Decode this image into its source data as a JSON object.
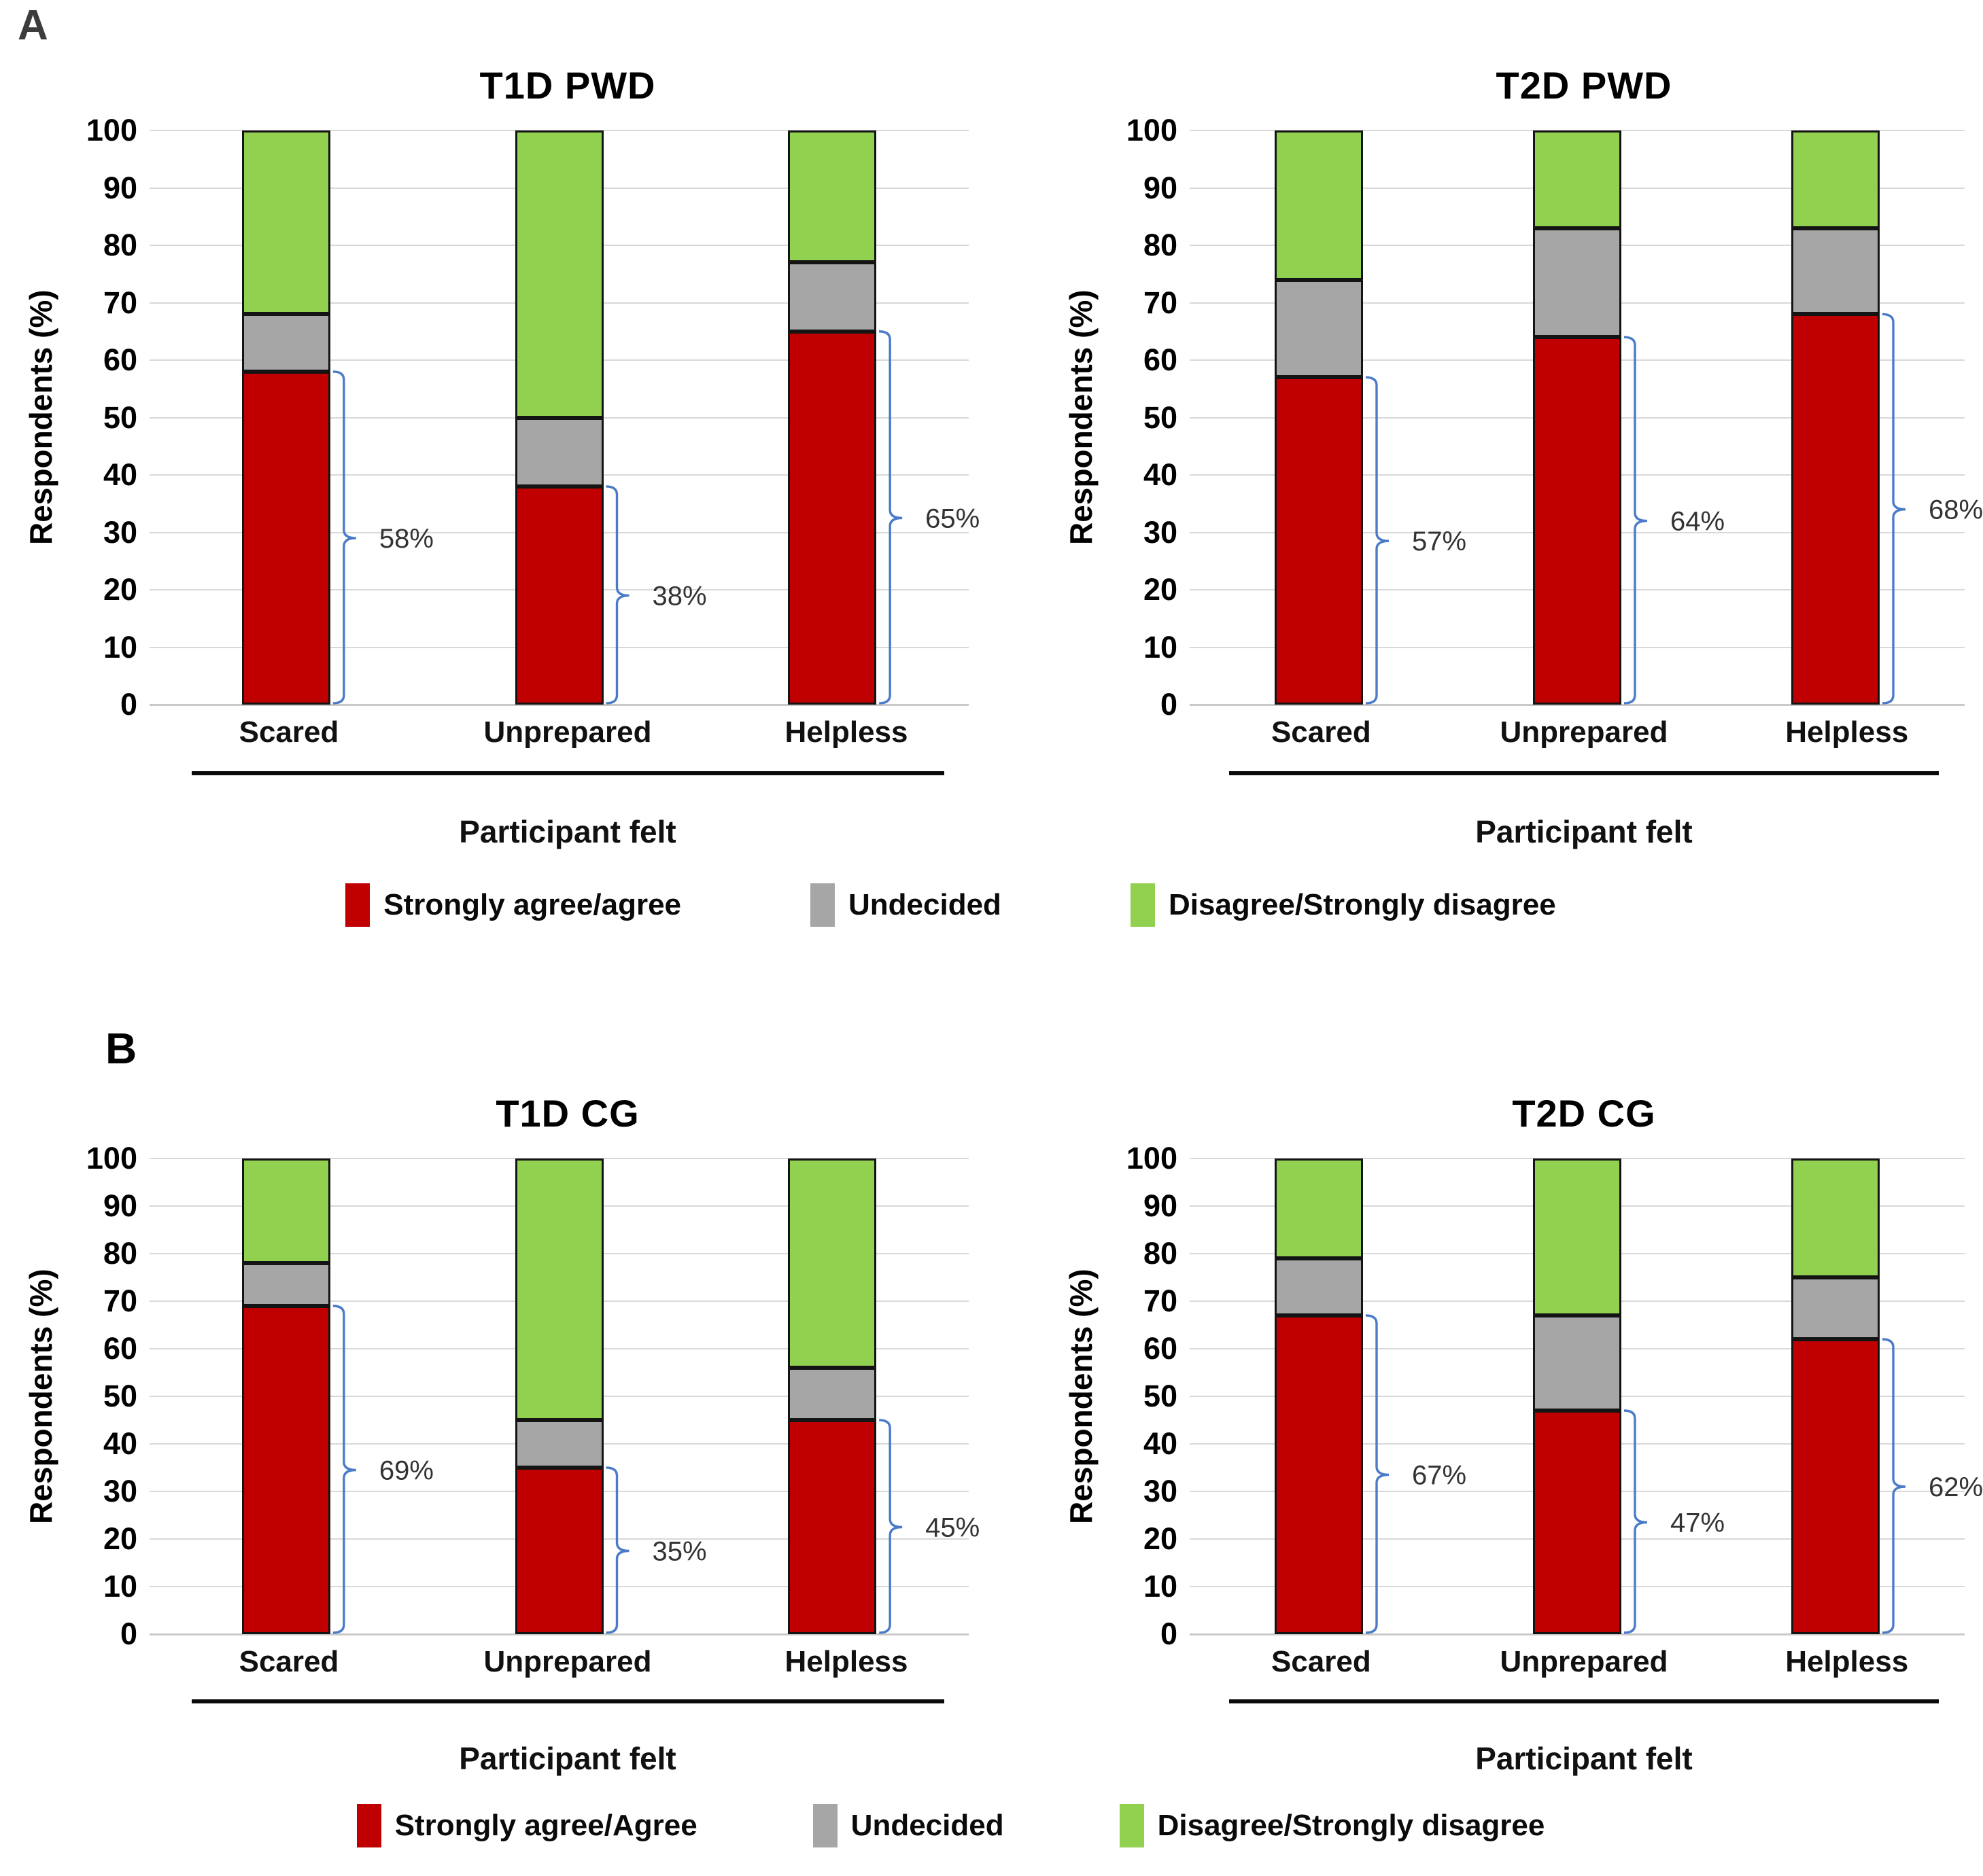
{
  "figure": {
    "panel_a_label": "A",
    "panel_b_label": "B"
  },
  "colors": {
    "agree": "#C00000",
    "undecided": "#A6A6A6",
    "disagree": "#92D050",
    "brace": "#4B7BC8",
    "gridline": "#D9D9D9",
    "baseline": "#C9C9C9",
    "segment_border": "#141414",
    "annotation_text": "#333333"
  },
  "panels": [
    {
      "label": "A",
      "chart_indexes": [
        0,
        1
      ],
      "legend": [
        "Strongly agree/agree",
        "Undecided",
        "Disagree/Strongly disagree"
      ]
    },
    {
      "label": "B",
      "chart_indexes": [
        2,
        3
      ],
      "legend": [
        "Strongly agree/Agree",
        "Undecided",
        "Disagree/Strongly disagree"
      ]
    }
  ],
  "chart_data": [
    {
      "type": "bar",
      "stacked": true,
      "panel": "A",
      "title": "T1D PWD",
      "categories": [
        "Scared",
        "Unprepared",
        "Helpless"
      ],
      "series": [
        {
          "name": "Strongly agree/agree",
          "values": [
            58,
            38,
            65
          ]
        },
        {
          "name": "Undecided",
          "values": [
            10,
            12,
            12
          ]
        },
        {
          "name": "Disagree/Strongly disagree",
          "values": [
            32,
            50,
            23
          ]
        }
      ],
      "annotations": [
        "58%",
        "38%",
        "65%"
      ],
      "xlabel": "Participant felt",
      "ylabel": "Respondents (%)",
      "ylim": [
        0,
        100
      ],
      "ytick_step": 10,
      "grid": true,
      "legend_position": "bottom"
    },
    {
      "type": "bar",
      "stacked": true,
      "panel": "A",
      "title": "T2D PWD",
      "categories": [
        "Scared",
        "Unprepared",
        "Helpless"
      ],
      "series": [
        {
          "name": "Strongly agree/agree",
          "values": [
            57,
            64,
            68
          ]
        },
        {
          "name": "Undecided",
          "values": [
            17,
            19,
            15
          ]
        },
        {
          "name": "Disagree/Strongly disagree",
          "values": [
            26,
            17,
            17
          ]
        }
      ],
      "annotations": [
        "57%",
        "64%",
        "68%"
      ],
      "xlabel": "Participant felt",
      "ylabel": "Respondents (%)",
      "ylim": [
        0,
        100
      ],
      "ytick_step": 10,
      "grid": true,
      "legend_position": "bottom"
    },
    {
      "type": "bar",
      "stacked": true,
      "panel": "B",
      "title": "T1D CG",
      "categories": [
        "Scared",
        "Unprepared",
        "Helpless"
      ],
      "series": [
        {
          "name": "Strongly agree/Agree",
          "values": [
            69,
            35,
            45
          ]
        },
        {
          "name": "Undecided",
          "values": [
            9,
            10,
            11
          ]
        },
        {
          "name": "Disagree/Strongly disagree",
          "values": [
            22,
            55,
            44
          ]
        }
      ],
      "annotations": [
        "69%",
        "35%",
        "45%"
      ],
      "xlabel": "Participant felt",
      "ylabel": "Respondents (%)",
      "ylim": [
        0,
        100
      ],
      "ytick_step": 10,
      "grid": true,
      "legend_position": "bottom"
    },
    {
      "type": "bar",
      "stacked": true,
      "panel": "B",
      "title": "T2D CG",
      "categories": [
        "Scared",
        "Unprepared",
        "Helpless"
      ],
      "series": [
        {
          "name": "Strongly agree/Agree",
          "values": [
            67,
            47,
            62
          ]
        },
        {
          "name": "Undecided",
          "values": [
            12,
            20,
            13
          ]
        },
        {
          "name": "Disagree/Strongly disagree",
          "values": [
            21,
            33,
            25
          ]
        }
      ],
      "annotations": [
        "67%",
        "47%",
        "62%"
      ],
      "xlabel": "Participant felt",
      "ylabel": "Respondents (%)",
      "ylim": [
        0,
        100
      ],
      "ytick_step": 10,
      "grid": true,
      "legend_position": "bottom"
    }
  ]
}
